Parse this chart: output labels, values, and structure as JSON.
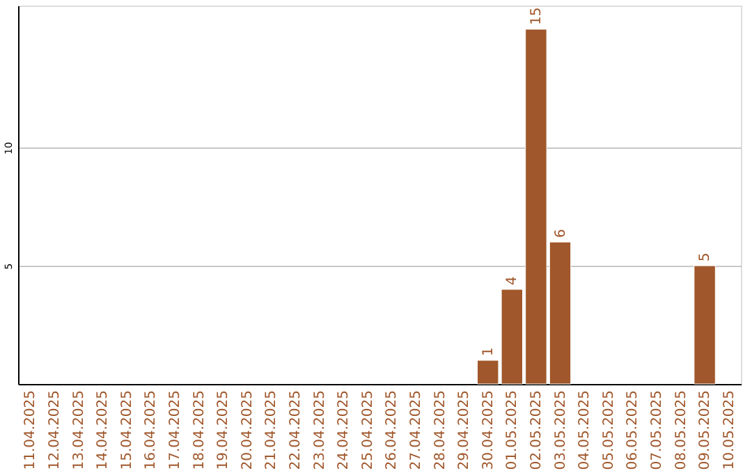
{
  "chart_data": {
    "type": "bar",
    "categories": [
      "11.04.2025",
      "12.04.2025",
      "13.04.2025",
      "14.04.2025",
      "15.04.2025",
      "16.04.2025",
      "17.04.2025",
      "18.04.2025",
      "19.04.2025",
      "20.04.2025",
      "21.04.2025",
      "22.04.2025",
      "23.04.2025",
      "24.04.2025",
      "25.04.2025",
      "26.04.2025",
      "27.04.2025",
      "28.04.2025",
      "29.04.2025",
      "30.04.2025",
      "01.05.2025",
      "02.05.2025",
      "03.05.2025",
      "04.05.2025",
      "05.05.2025",
      "06.05.2025",
      "07.05.2025",
      "08.05.2025",
      "09.05.2025",
      "10.05.2025"
    ],
    "values": [
      null,
      null,
      null,
      null,
      null,
      null,
      null,
      null,
      null,
      null,
      null,
      null,
      null,
      null,
      null,
      null,
      null,
      null,
      null,
      1,
      4,
      15,
      6,
      null,
      null,
      null,
      null,
      null,
      5,
      null
    ],
    "color": "#a0572b",
    "ylim": [
      0,
      16
    ],
    "yticks": [
      5,
      10
    ],
    "grid": "y",
    "data_labels": true
  }
}
